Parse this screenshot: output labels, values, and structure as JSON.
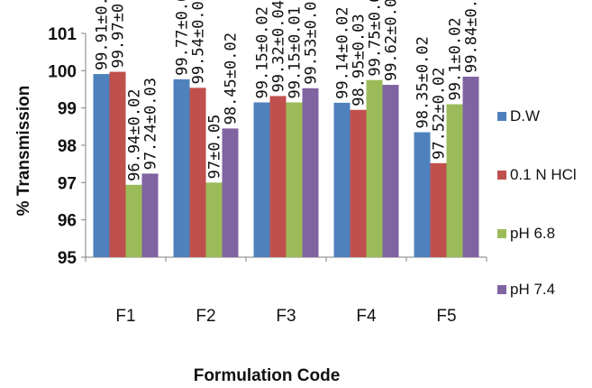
{
  "chart_data": {
    "type": "bar",
    "title": "",
    "xlabel": "Formulation Code",
    "ylabel": "% Transmission",
    "ylim": [
      95,
      101
    ],
    "yticks": [
      "95",
      "96",
      "97",
      "98",
      "99",
      "100",
      "101"
    ],
    "grid": false,
    "legend_position": "right",
    "categories": [
      "F1",
      "F2",
      "F3",
      "F4",
      "F5"
    ],
    "series": [
      {
        "name": "D.W",
        "color": "#4f81bd",
        "values": [
          99.91,
          99.77,
          99.15,
          99.14,
          98.35
        ],
        "labels": [
          "99.91±0.02",
          "99.77±0.02",
          "99.15±0.02",
          "99.14±0.02",
          "98.35±0.02"
        ]
      },
      {
        "name": "0.1 N HCl",
        "color": "#c0504d",
        "values": [
          99.97,
          99.54,
          99.32,
          98.95,
          97.52
        ],
        "labels": [
          "99.97±0.05",
          "99.54±0.015",
          "99.32±0.04",
          "98.95±0.03",
          "97.52±0.02"
        ]
      },
      {
        "name": "pH 6.8",
        "color": "#9bbb59",
        "values": [
          96.94,
          97.0,
          99.15,
          99.75,
          99.1
        ],
        "labels": [
          "96.94±0.02",
          "97±0.05",
          "99.15±0.01",
          "99.75±0.02",
          "99.1±0.02"
        ]
      },
      {
        "name": "pH 7.4",
        "color": "#8064a2",
        "values": [
          97.24,
          98.45,
          99.53,
          99.62,
          99.84
        ],
        "labels": [
          "97.24±0.03",
          "98.45±0.02",
          "99.53±0.01",
          "99.62±0.01",
          "99.84±0.02"
        ]
      }
    ]
  }
}
